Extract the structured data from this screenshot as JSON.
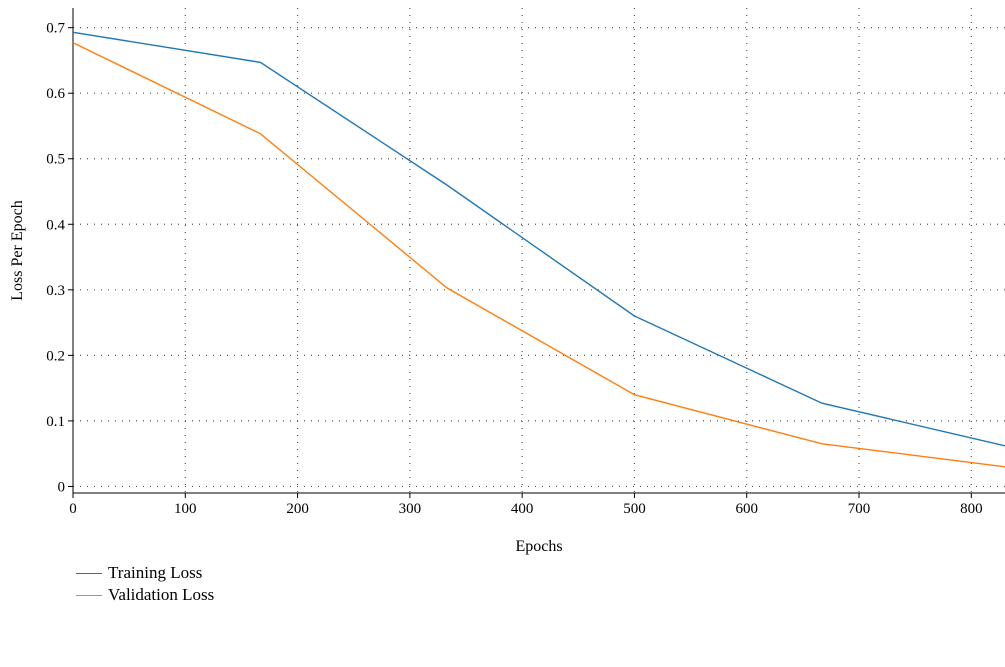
{
  "chart_data": {
    "type": "line",
    "title": "",
    "xlabel": "Epochs",
    "ylabel": "Loss Per Epoch",
    "xlim": [
      0,
      830
    ],
    "ylim": [
      -0.01,
      0.73
    ],
    "xticks": [
      0,
      100,
      200,
      300,
      400,
      500,
      600,
      700,
      800
    ],
    "yticks": [
      0,
      0.1,
      0.2,
      0.3,
      0.4,
      0.5,
      0.6,
      0.7
    ],
    "ytick_labels": [
      "0",
      "0.1",
      "0.2",
      "0.3",
      "0.4",
      "0.5",
      "0.6",
      "0.7"
    ],
    "grid": true,
    "legend_position": "bottom-left",
    "series": [
      {
        "name": "Training Loss",
        "color": "#1f77b4",
        "x": [
          0,
          167,
          333,
          500,
          667,
          830
        ],
        "y": [
          0.693,
          0.647,
          0.46,
          0.26,
          0.127,
          0.062
        ]
      },
      {
        "name": "Validation Loss",
        "color": "#ff7f0e",
        "x": [
          0,
          167,
          333,
          500,
          667,
          830
        ],
        "y": [
          0.677,
          0.538,
          0.303,
          0.14,
          0.065,
          0.03
        ]
      }
    ]
  }
}
